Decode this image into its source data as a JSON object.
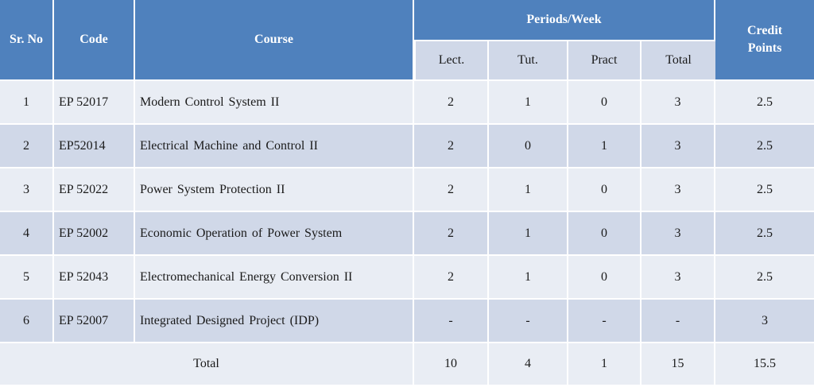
{
  "headers": {
    "sr_no": "Sr. No",
    "code": "Code",
    "course": "Course",
    "periods_week": "Periods/Week",
    "credit_points": "Credit Points",
    "lect": "Lect.",
    "tut": "Tut.",
    "pract": "Pract",
    "total": "Total"
  },
  "rows": [
    {
      "sr": "1",
      "code": "EP 52017",
      "course": "Modern Control System II",
      "lect": "2",
      "tut": "1",
      "pract": "0",
      "total": "3",
      "credit": "2.5"
    },
    {
      "sr": "2",
      "code": "EP52014",
      "course": "Electrical Machine and Control II",
      "lect": "2",
      "tut": "0",
      "pract": "1",
      "total": "3",
      "credit": "2.5"
    },
    {
      "sr": "3",
      "code": "EP 52022",
      "course": "Power System Protection II",
      "lect": "2",
      "tut": "1",
      "pract": "0",
      "total": "3",
      "credit": "2.5"
    },
    {
      "sr": "4",
      "code": "EP 52002",
      "course": "Economic Operation of Power System",
      "lect": "2",
      "tut": "1",
      "pract": "0",
      "total": "3",
      "credit": "2.5"
    },
    {
      "sr": "5",
      "code": "EP 52043",
      "course": "Electromechanical Energy Conversion II",
      "lect": "2",
      "tut": "1",
      "pract": "0",
      "total": "3",
      "credit": "2.5"
    },
    {
      "sr": "6",
      "code": "EP 52007",
      "course": "Integrated Designed Project (IDP)",
      "lect": "-",
      "tut": "-",
      "pract": "-",
      "total": "-",
      "credit": "3"
    }
  ],
  "totals": {
    "label": "Total",
    "lect": "10",
    "tut": "4",
    "pract": "1",
    "total": "15",
    "credit": "15.5"
  },
  "colors": {
    "header": "#4f81bd",
    "row_light": "#e9edf4",
    "row_dark": "#d0d8e8"
  }
}
